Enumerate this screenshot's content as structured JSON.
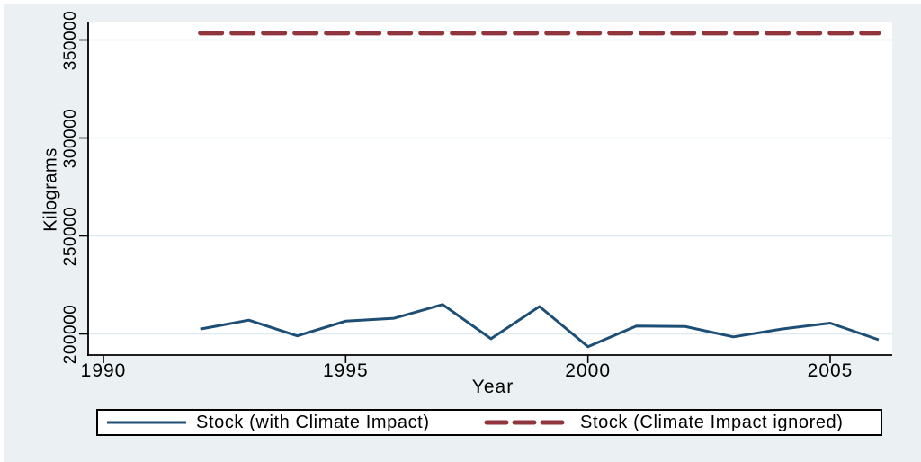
{
  "chart_data": {
    "type": "line",
    "title": "",
    "xlabel": "Year",
    "ylabel": "Kilograms",
    "x": [
      1992,
      1993,
      1994,
      1995,
      1996,
      1997,
      1998,
      1999,
      2000,
      2001,
      2002,
      2003,
      2004,
      2005,
      2006
    ],
    "series": [
      {
        "name": "Stock (with Climate Impact)",
        "style": "solid",
        "color": "#1d4f76",
        "values": [
          202500,
          207000,
          199000,
          206500,
          208000,
          215000,
          197500,
          214000,
          193500,
          204000,
          203800,
          198500,
          202500,
          205500,
          197000
        ]
      },
      {
        "name": "Stock (Climate Impact ignored)",
        "style": "dashed",
        "color": "#90353b",
        "values": [
          353500,
          353500,
          353500,
          353500,
          353500,
          353500,
          353500,
          353500,
          353500,
          353500,
          353500,
          353500,
          353500,
          353500,
          353500
        ]
      }
    ],
    "xticks": [
      "1990",
      "1995",
      "2000",
      "2005"
    ],
    "xtick_values": [
      1990,
      1995,
      2000,
      2005
    ],
    "yticks": [
      "200000",
      "250000",
      "300000",
      "350000"
    ],
    "ytick_values": [
      200000,
      250000,
      300000,
      350000
    ],
    "xlim": [
      1989.7,
      2006.3
    ],
    "ylim": [
      189200,
      359400
    ],
    "grid": true,
    "legend_position": "bottom",
    "colors": {
      "background": "#ebf1f3",
      "plot_background": "#ffffff",
      "gridline": "#dfeaee",
      "axis": "#000000"
    }
  }
}
